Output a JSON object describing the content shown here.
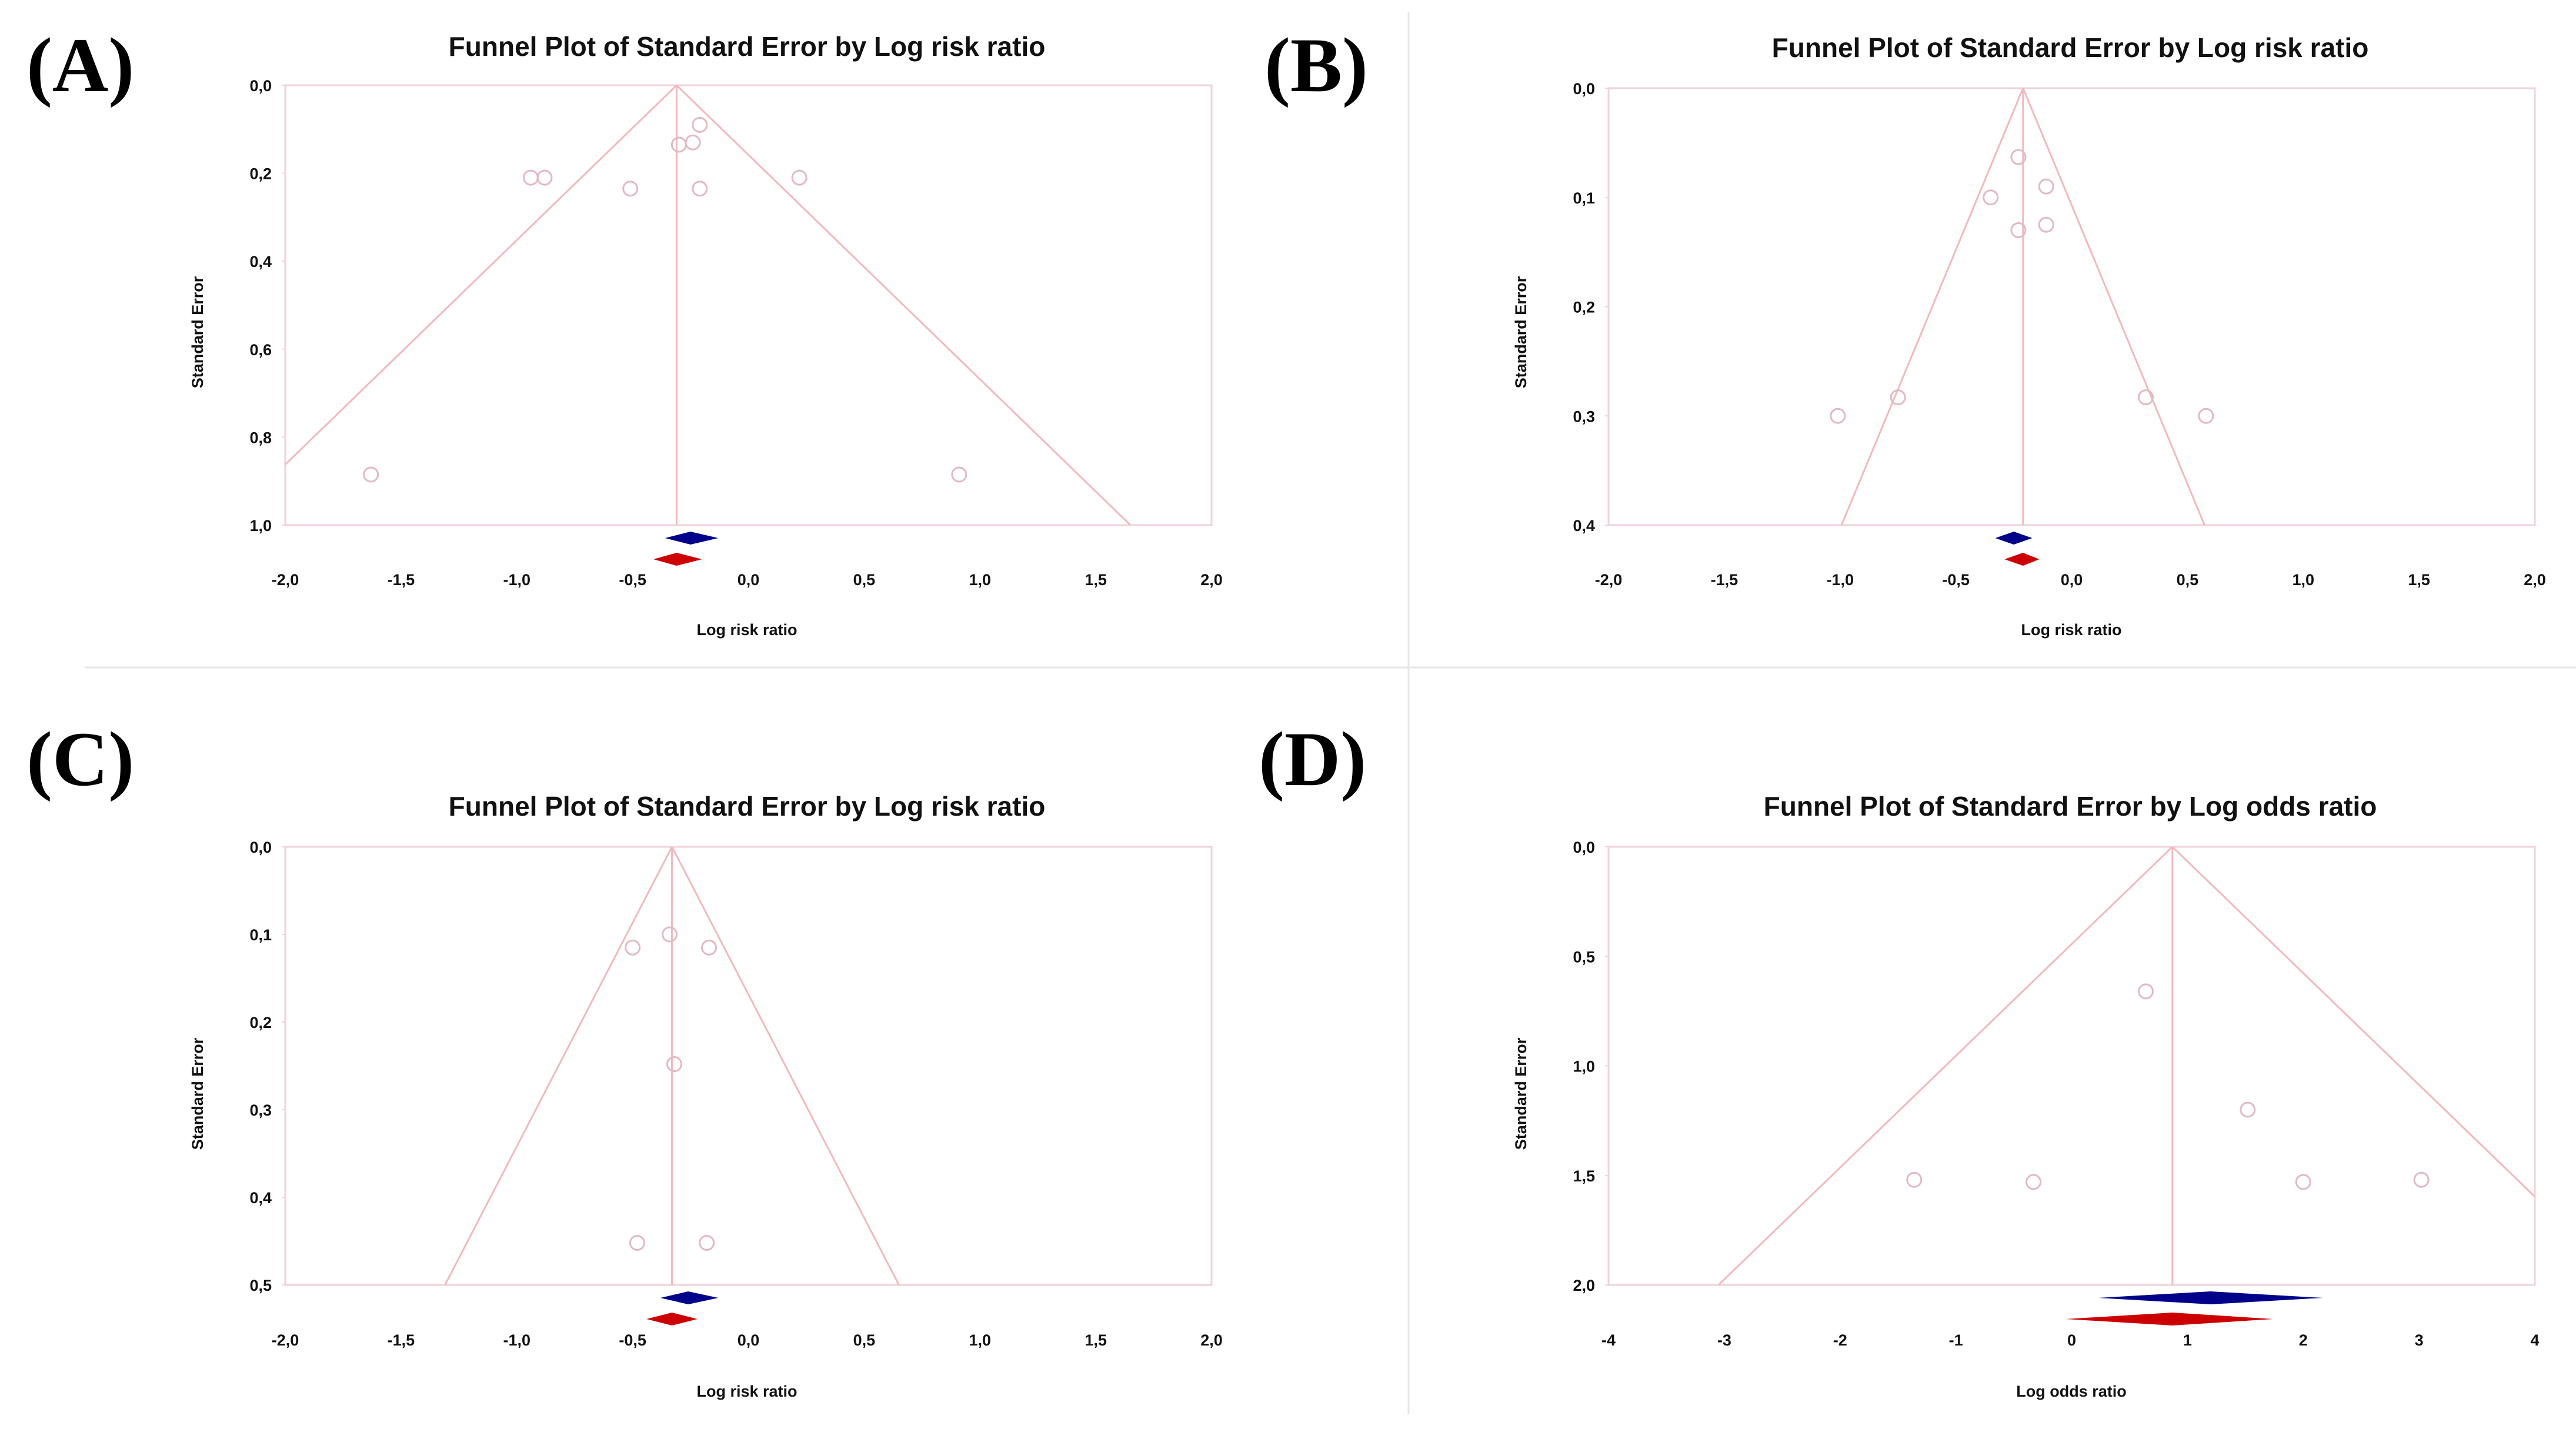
{
  "figure": {
    "panel_labels": [
      "(A)",
      "(B)",
      "(C)",
      "(D)"
    ],
    "colors": {
      "funnel_line": "#f2b8c0",
      "plot_border": "#efd3d8",
      "study_marker": "#e2b9c4",
      "diamond_blue": "#00008b",
      "diamond_red": "#cc0000",
      "separator": "#e6e6e6"
    }
  },
  "chart_data": [
    {
      "type": "scatter",
      "panel": "(A)",
      "title": "Funnel Plot of Standard Error by Log risk ratio",
      "xlabel": "Log risk ratio",
      "ylabel": "Standard Error",
      "xlim": [
        -2.0,
        2.0
      ],
      "ylim": [
        1.0,
        0.0
      ],
      "x_ticks": [
        "-2,0",
        "-1,5",
        "-1,0",
        "-0,5",
        "0,0",
        "0,5",
        "1,0",
        "1,5",
        "2,0"
      ],
      "y_ticks": [
        "0,0",
        "0,2",
        "0,4",
        "0,6",
        "0,8",
        "1,0"
      ],
      "y_tick_values": [
        0.0,
        0.2,
        0.4,
        0.6,
        0.8,
        1.0
      ],
      "summary_effect": -0.31,
      "points": [
        {
          "x": -0.94,
          "y": 0.21
        },
        {
          "x": -0.88,
          "y": 0.21
        },
        {
          "x": -0.51,
          "y": 0.235
        },
        {
          "x": -0.3,
          "y": 0.135
        },
        {
          "x": -0.24,
          "y": 0.13
        },
        {
          "x": -0.21,
          "y": 0.09
        },
        {
          "x": -0.21,
          "y": 0.235
        },
        {
          "x": 0.22,
          "y": 0.21
        },
        {
          "x": -1.63,
          "y": 0.885
        },
        {
          "x": 0.91,
          "y": 0.885
        }
      ],
      "diamonds": [
        {
          "color": "blue",
          "center": -0.25,
          "low": -0.36,
          "high": -0.13
        },
        {
          "color": "red",
          "center": -0.31,
          "low": -0.41,
          "high": -0.2
        }
      ]
    },
    {
      "type": "scatter",
      "panel": "(B)",
      "title": "Funnel Plot of Standard Error by Log risk ratio",
      "xlabel": "Log risk ratio",
      "ylabel": "Standard Error",
      "xlim": [
        -2.0,
        2.0
      ],
      "ylim": [
        0.4,
        0.0
      ],
      "x_ticks": [
        "-2,0",
        "-1,5",
        "-1,0",
        "-0,5",
        "0,0",
        "0,5",
        "1,0",
        "1,5",
        "2,0"
      ],
      "y_ticks": [
        "0,0",
        "0,1",
        "0,2",
        "0,3",
        "0,4"
      ],
      "y_tick_values": [
        0.0,
        0.1,
        0.2,
        0.3,
        0.4
      ],
      "summary_effect": -0.21,
      "points": [
        {
          "x": -0.23,
          "y": 0.063
        },
        {
          "x": -0.35,
          "y": 0.1
        },
        {
          "x": -0.11,
          "y": 0.09
        },
        {
          "x": -0.23,
          "y": 0.13
        },
        {
          "x": -0.11,
          "y": 0.125
        },
        {
          "x": -1.01,
          "y": 0.3
        },
        {
          "x": -0.75,
          "y": 0.283
        },
        {
          "x": 0.32,
          "y": 0.283
        },
        {
          "x": 0.58,
          "y": 0.3
        }
      ],
      "diamonds": [
        {
          "color": "blue",
          "center": -0.25,
          "low": -0.33,
          "high": -0.17
        },
        {
          "color": "red",
          "center": -0.21,
          "low": -0.29,
          "high": -0.14
        }
      ]
    },
    {
      "type": "scatter",
      "panel": "(C)",
      "title": "Funnel Plot of Standard Error by Log risk ratio",
      "xlabel": "Log risk ratio",
      "ylabel": "Standard Error",
      "xlim": [
        -2.0,
        2.0
      ],
      "ylim": [
        0.5,
        0.0
      ],
      "x_ticks": [
        "-2,0",
        "-1,5",
        "-1,0",
        "-0,5",
        "0,0",
        "0,5",
        "1,0",
        "1,5",
        "2,0"
      ],
      "y_ticks": [
        "0,0",
        "0,1",
        "0,2",
        "0,3",
        "0,4",
        "0,5"
      ],
      "y_tick_values": [
        0.0,
        0.1,
        0.2,
        0.3,
        0.4,
        0.5
      ],
      "summary_effect": -0.33,
      "points": [
        {
          "x": -0.5,
          "y": 0.115
        },
        {
          "x": -0.34,
          "y": 0.1
        },
        {
          "x": -0.17,
          "y": 0.115
        },
        {
          "x": -0.32,
          "y": 0.248
        },
        {
          "x": -0.48,
          "y": 0.452
        },
        {
          "x": -0.18,
          "y": 0.452
        }
      ],
      "diamonds": [
        {
          "color": "blue",
          "center": -0.26,
          "low": -0.38,
          "high": -0.13
        },
        {
          "color": "red",
          "center": -0.33,
          "low": -0.44,
          "high": -0.22
        }
      ]
    },
    {
      "type": "scatter",
      "panel": "(D)",
      "title": "Funnel Plot of Standard Error by Log odds ratio",
      "xlabel": "Log odds ratio",
      "ylabel": "Standard Error",
      "xlim": [
        -4,
        4
      ],
      "ylim": [
        2.0,
        0.0
      ],
      "x_ticks": [
        "-4",
        "-3",
        "-2",
        "-1",
        "0",
        "1",
        "2",
        "3",
        "4"
      ],
      "y_ticks": [
        "0,0",
        "0,5",
        "1,0",
        "1,5",
        "2,0"
      ],
      "y_tick_values": [
        0.0,
        0.5,
        1.0,
        1.5,
        2.0
      ],
      "summary_effect": 0.87,
      "points": [
        {
          "x": 0.64,
          "y": 0.66
        },
        {
          "x": 1.52,
          "y": 1.2
        },
        {
          "x": -1.36,
          "y": 1.52
        },
        {
          "x": -0.33,
          "y": 1.53
        },
        {
          "x": 2.0,
          "y": 1.53
        },
        {
          "x": 3.02,
          "y": 1.52
        }
      ],
      "diamonds": [
        {
          "color": "blue",
          "center": 1.2,
          "low": 0.23,
          "high": 2.17
        },
        {
          "color": "red",
          "center": 0.87,
          "low": -0.05,
          "high": 1.74
        }
      ]
    }
  ]
}
